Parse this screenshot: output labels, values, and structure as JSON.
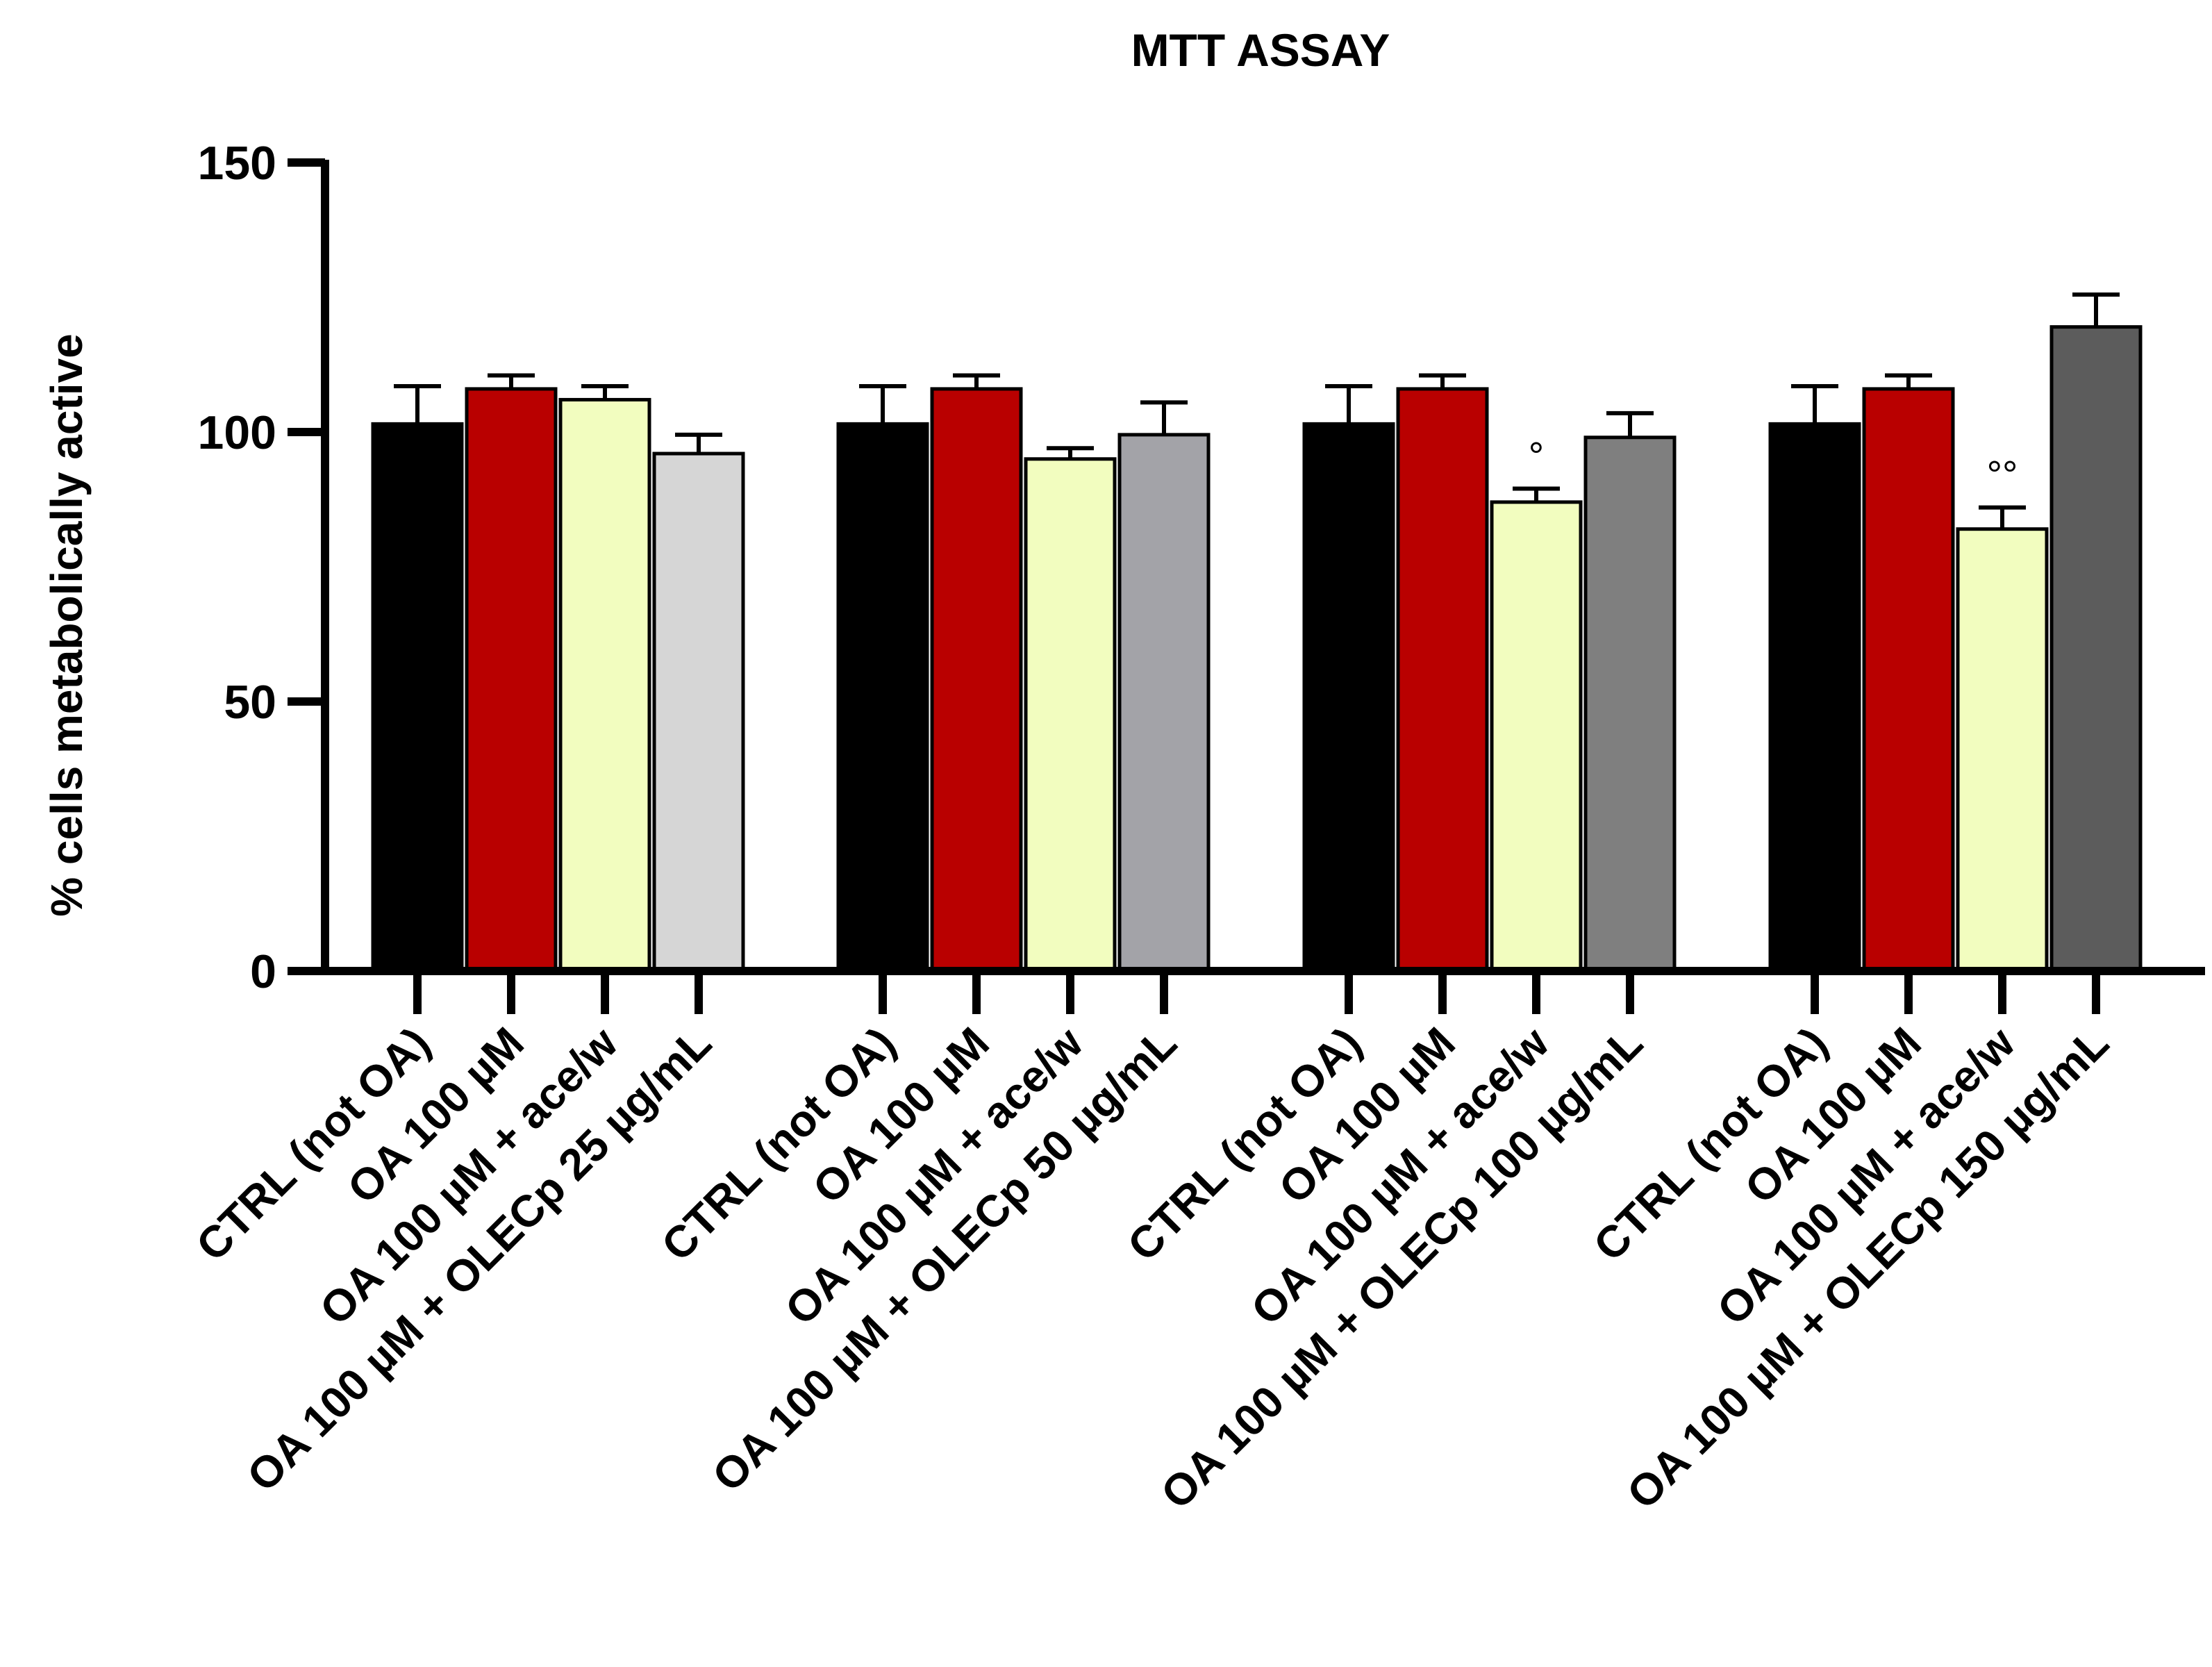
{
  "chart_data": {
    "type": "bar",
    "title": "MTT ASSAY",
    "xlabel": "",
    "ylabel": "% cells metabolically active",
    "ylim": [
      0,
      150
    ],
    "yticks": [
      0,
      50,
      100,
      150
    ],
    "groups": [
      {
        "bars": [
          {
            "label": "CTRL (not OA)",
            "value": 101.5,
            "error": 7,
            "color": "#000000",
            "annotation": ""
          },
          {
            "label": "OA 100 µM",
            "value": 108,
            "error": 2.5,
            "color": "#b90000",
            "annotation": ""
          },
          {
            "label": "OA 100 µM + ace/w",
            "value": 106,
            "error": 2.5,
            "color": "#f2fdbf",
            "annotation": ""
          },
          {
            "label": "OA 100 µM + OLECp 25 µg/mL",
            "value": 96,
            "error": 3.5,
            "color": "#d6d6d6",
            "annotation": ""
          }
        ]
      },
      {
        "bars": [
          {
            "label": "CTRL (not OA)",
            "value": 101.5,
            "error": 7,
            "color": "#000000",
            "annotation": ""
          },
          {
            "label": "OA 100 µM",
            "value": 108,
            "error": 2.5,
            "color": "#b90000",
            "annotation": ""
          },
          {
            "label": "OA 100 µM + ace/w",
            "value": 95,
            "error": 2,
            "color": "#f2fdbf",
            "annotation": ""
          },
          {
            "label": "OA 100 µM + OLECp 50 µg/mL",
            "value": 99.5,
            "error": 6,
            "color": "#a3a3a8",
            "annotation": ""
          }
        ]
      },
      {
        "bars": [
          {
            "label": "CTRL (not OA)",
            "value": 101.5,
            "error": 7,
            "color": "#000000",
            "annotation": ""
          },
          {
            "label": "OA 100 µM",
            "value": 108,
            "error": 2.5,
            "color": "#b90000",
            "annotation": ""
          },
          {
            "label": "OA 100 µM + ace/w",
            "value": 87,
            "error": 2.5,
            "color": "#f2fdbf",
            "annotation": "°"
          },
          {
            "label": "OA 100 µM + OLECp 100 µg/mL",
            "value": 99,
            "error": 4.5,
            "color": "#7f7f7f",
            "annotation": ""
          }
        ]
      },
      {
        "bars": [
          {
            "label": "CTRL (not OA)",
            "value": 101.5,
            "error": 7,
            "color": "#000000",
            "annotation": ""
          },
          {
            "label": "OA 100 µM",
            "value": 108,
            "error": 2.5,
            "color": "#b90000",
            "annotation": ""
          },
          {
            "label": "OA 100 µM + ace/w",
            "value": 82,
            "error": 4,
            "color": "#f2fdbf",
            "annotation": "°°"
          },
          {
            "label": "OA 100 µM + OLECp 150 µg/mL",
            "value": 119.5,
            "error": 6,
            "color": "#5c5c5c",
            "annotation": ""
          }
        ]
      }
    ]
  }
}
